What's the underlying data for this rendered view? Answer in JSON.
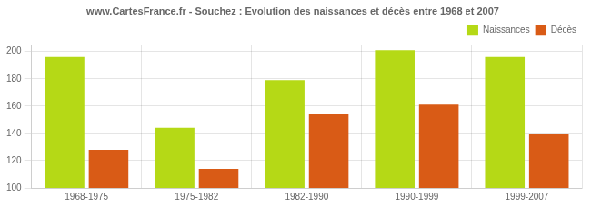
{
  "chart_data": {
    "type": "bar",
    "title": "www.CartesFrance.fr - Souchez : Evolution des naissances et décès entre 1968 et 2007",
    "categories": [
      "1968-1975",
      "1975-1982",
      "1982-1990",
      "1990-1999",
      "1999-2007"
    ],
    "series": [
      {
        "name": "Naissances",
        "color": "#b5d916",
        "values": [
          196,
          144,
          179,
          201,
          196
        ]
      },
      {
        "name": "Décès",
        "color": "#d95b16",
        "values": [
          128,
          114,
          154,
          161,
          140
        ]
      }
    ],
    "ylim": [
      100,
      205
    ],
    "yticks": [
      100,
      120,
      140,
      160,
      180,
      200
    ],
    "grid": true,
    "legend": "upper right"
  }
}
